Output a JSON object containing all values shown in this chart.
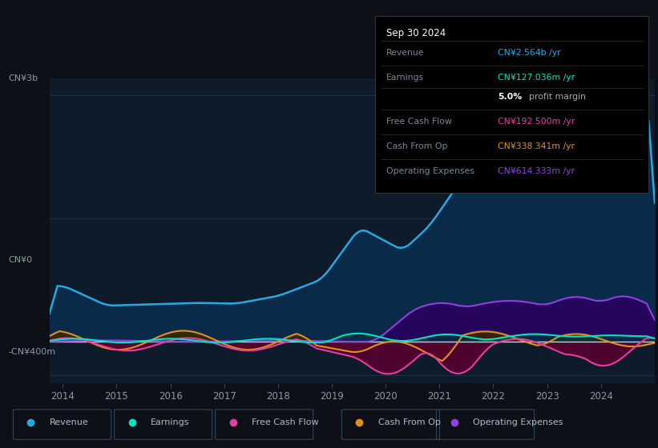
{
  "bg_color": "#0d1117",
  "plot_bg_color": "#0d1b2a",
  "ytick_labels": [
    "-CN¥400m",
    "CN¥0",
    "CN¥3b"
  ],
  "xticks": [
    2014,
    2015,
    2016,
    2017,
    2018,
    2019,
    2020,
    2021,
    2022,
    2023,
    2024
  ],
  "ylim": [
    -500000000,
    3200000000
  ],
  "series_colors": {
    "Revenue": {
      "line": "#29a8e0",
      "fill": "#0a2a4a"
    },
    "Earnings": {
      "line": "#00e5c0",
      "fill": "#003344"
    },
    "Free Cash Flow": {
      "line": "#e040a0",
      "fill": "#5a0030"
    },
    "Cash From Op": {
      "line": "#e09020",
      "fill": "#3a2800"
    },
    "Operating Expenses": {
      "line": "#9040e0",
      "fill": "#2a0060"
    }
  },
  "tooltip": {
    "title": "Sep 30 2024",
    "rows": [
      {
        "label": "Revenue",
        "value": "CN¥2.564b /yr",
        "color": "#29a8e0"
      },
      {
        "label": "Earnings",
        "value": "CN¥127.036m /yr",
        "color": "#00e5c0"
      },
      {
        "label": "",
        "value": "5.0% profit margin",
        "color": "#ffffff"
      },
      {
        "label": "Free Cash Flow",
        "value": "CN¥192.500m /yr",
        "color": "#e040a0"
      },
      {
        "label": "Cash From Op",
        "value": "CN¥338.341m /yr",
        "color": "#e09020"
      },
      {
        "label": "Operating Expenses",
        "value": "CN¥614.333m /yr",
        "color": "#9040e0"
      }
    ]
  },
  "legend": [
    {
      "label": "Revenue",
      "color": "#29a8e0"
    },
    {
      "label": "Earnings",
      "color": "#00e5c0"
    },
    {
      "label": "Free Cash Flow",
      "color": "#e040a0"
    },
    {
      "label": "Cash From Op",
      "color": "#e09020"
    },
    {
      "label": "Operating Expenses",
      "color": "#9040e0"
    }
  ]
}
